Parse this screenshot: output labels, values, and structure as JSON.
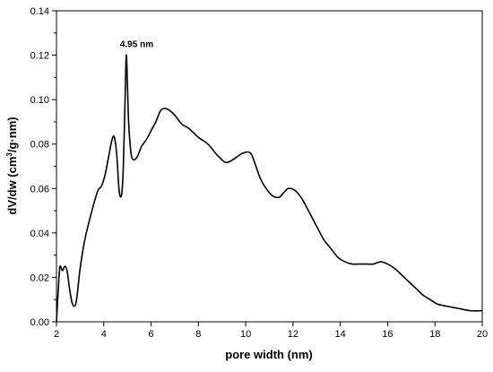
{
  "chart_data": {
    "type": "line",
    "title": "",
    "xlabel": "pore width (nm)",
    "ylabel_parts": [
      "dV/dw (cm",
      "3",
      "/g·nm)"
    ],
    "xlim": [
      2,
      20
    ],
    "ylim": [
      0,
      0.14
    ],
    "xticks": [
      "2",
      "4",
      "6",
      "8",
      "10",
      "12",
      "14",
      "16",
      "18",
      "20"
    ],
    "yticks": [
      "0.00",
      "0.02",
      "0.04",
      "0.06",
      "0.08",
      "0.10",
      "0.12",
      "0.14"
    ],
    "grid": false,
    "annotation": {
      "text": "4.95 nm",
      "x": 4.95,
      "y": 0.12
    },
    "series": [
      {
        "color": "#000000",
        "x": [
          2.0,
          2.1,
          2.15,
          2.25,
          2.35,
          2.45,
          2.55,
          2.65,
          2.75,
          2.85,
          3.0,
          3.2,
          3.5,
          3.75,
          3.9,
          4.05,
          4.2,
          4.35,
          4.45,
          4.55,
          4.65,
          4.75,
          4.82,
          4.9,
          4.95,
          5.0,
          5.05,
          5.15,
          5.25,
          5.4,
          5.6,
          5.8,
          6.0,
          6.2,
          6.4,
          6.6,
          6.8,
          7.0,
          7.3,
          7.6,
          8.0,
          8.4,
          8.8,
          9.1,
          9.3,
          9.6,
          9.9,
          10.2,
          10.4,
          10.6,
          10.8,
          11.1,
          11.4,
          11.6,
          11.8,
          12.1,
          12.4,
          12.7,
          13.0,
          13.3,
          13.6,
          13.9,
          14.2,
          14.5,
          14.8,
          15.1,
          15.4,
          15.7,
          16.0,
          16.3,
          16.6,
          16.9,
          17.2,
          17.5,
          17.8,
          18.1,
          18.5,
          19.0,
          19.5,
          20.0
        ],
        "y": [
          0.0,
          0.019,
          0.025,
          0.023,
          0.025,
          0.023,
          0.015,
          0.009,
          0.007,
          0.01,
          0.024,
          0.037,
          0.05,
          0.059,
          0.061,
          0.066,
          0.074,
          0.082,
          0.083,
          0.075,
          0.059,
          0.057,
          0.068,
          0.1,
          0.12,
          0.107,
          0.09,
          0.076,
          0.073,
          0.074,
          0.079,
          0.082,
          0.086,
          0.09,
          0.095,
          0.096,
          0.095,
          0.093,
          0.089,
          0.087,
          0.083,
          0.08,
          0.075,
          0.072,
          0.072,
          0.074,
          0.076,
          0.076,
          0.071,
          0.065,
          0.061,
          0.057,
          0.056,
          0.058,
          0.06,
          0.059,
          0.055,
          0.049,
          0.043,
          0.037,
          0.033,
          0.029,
          0.027,
          0.026,
          0.026,
          0.026,
          0.026,
          0.027,
          0.026,
          0.024,
          0.021,
          0.018,
          0.015,
          0.012,
          0.01,
          0.008,
          0.007,
          0.006,
          0.005,
          0.005
        ]
      }
    ]
  }
}
